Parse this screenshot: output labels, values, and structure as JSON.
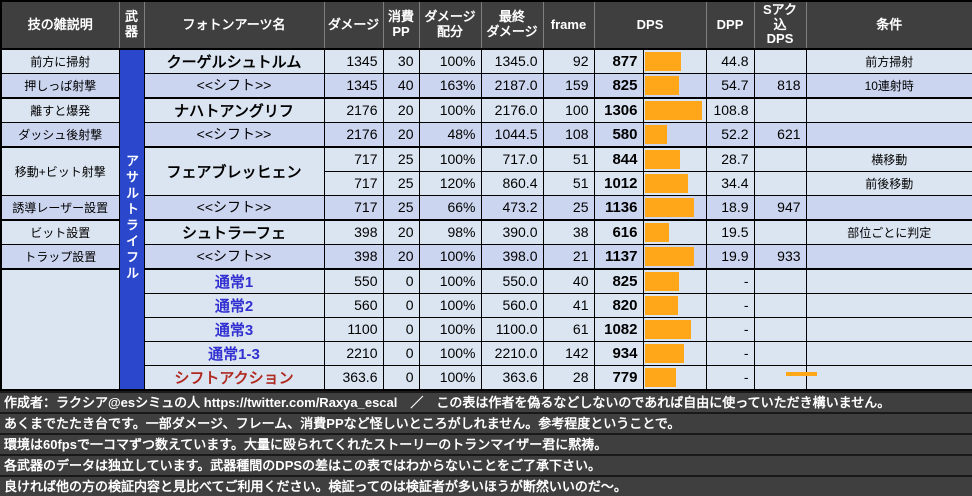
{
  "colors": {
    "header_bg": "#3f3f3f",
    "row_light": "#dbe5f1",
    "row_dark": "#ccd5ef",
    "weapon_band_blue": "#2b48cd",
    "dps_bar_orange": "#ffa718",
    "normal_attack_text": "#3230d0",
    "shift_action_text": "#b02a22"
  },
  "table": {
    "headers": {
      "desc": "技の雑説明",
      "weapon": "武\n器",
      "pa": "フォトンアーツ名",
      "damage": "ダメージ",
      "pp": "消費\nPP",
      "ratio": "ダメージ\n配分",
      "final": "最終\nダメージ",
      "frame": "frame",
      "dps": "DPS",
      "dpp": "DPP",
      "sdps": "Sアク込\nDPS",
      "cond": "条件"
    },
    "weapon_label": "アサルトライフル",
    "dps_bar_scale": {
      "min": 580,
      "max": 1306,
      "min_pct": 38,
      "max_pct": 97
    },
    "rows": [
      {
        "desc": "前方に掃射",
        "descSpan": 1,
        "pa": "クーゲルシュトルム",
        "paSpan": 1,
        "paStyle": "pa",
        "damage": "1345",
        "pp": "30",
        "ratio": "100%",
        "final": "1345.0",
        "frame": "92",
        "dps": 877,
        "dpp": "44.8",
        "sdps": "",
        "cond": "前方掃射",
        "tone": "light",
        "group": false
      },
      {
        "desc": "押しっぱ射撃",
        "descSpan": 1,
        "pa": "<<シフト>>",
        "paSpan": 1,
        "paStyle": "shift",
        "damage": "1345",
        "pp": "40",
        "ratio": "163%",
        "final": "2187.0",
        "frame": "159",
        "dps": 825,
        "dpp": "54.7",
        "sdps": "818",
        "cond": "10連射時",
        "tone": "dark",
        "group": false
      },
      {
        "desc": "離すと爆発",
        "descSpan": 1,
        "pa": "ナハトアングリフ",
        "paSpan": 1,
        "paStyle": "pa",
        "damage": "2176",
        "pp": "20",
        "ratio": "100%",
        "final": "2176.0",
        "frame": "100",
        "dps": 1306,
        "dpp": "108.8",
        "sdps": "",
        "cond": "",
        "tone": "light",
        "group": true
      },
      {
        "desc": "ダッシュ後射撃",
        "descSpan": 1,
        "pa": "<<シフト>>",
        "paSpan": 1,
        "paStyle": "shift",
        "damage": "2176",
        "pp": "20",
        "ratio": "48%",
        "final": "1044.5",
        "frame": "108",
        "dps": 580,
        "dpp": "52.2",
        "sdps": "621",
        "cond": "",
        "tone": "dark",
        "group": false
      },
      {
        "desc": "移動+ビット射撃",
        "descSpan": 2,
        "pa": "フェアブレッヒェン",
        "paSpan": 2,
        "paStyle": "pa",
        "damage": "717",
        "pp": "25",
        "ratio": "100%",
        "final": "717.0",
        "frame": "51",
        "dps": 844,
        "dpp": "28.7",
        "sdps": "",
        "cond": "横移動",
        "tone": "light",
        "group": true
      },
      {
        "damage": "717",
        "pp": "25",
        "ratio": "120%",
        "final": "860.4",
        "frame": "51",
        "dps": 1012,
        "dpp": "34.4",
        "sdps": "",
        "cond": "前後移動",
        "tone": "light",
        "group": false
      },
      {
        "desc": "誘導レーザー設置",
        "descSpan": 1,
        "pa": "<<シフト>>",
        "paSpan": 1,
        "paStyle": "shift",
        "damage": "717",
        "pp": "25",
        "ratio": "66%",
        "final": "473.2",
        "frame": "25",
        "dps": 1136,
        "dpp": "18.9",
        "sdps": "947",
        "cond": "",
        "tone": "dark",
        "group": false
      },
      {
        "desc": "ビット設置",
        "descSpan": 1,
        "pa": "シュトラーフェ",
        "paSpan": 1,
        "paStyle": "pa",
        "damage": "398",
        "pp": "20",
        "ratio": "98%",
        "final": "390.0",
        "frame": "38",
        "dps": 616,
        "dpp": "19.5",
        "sdps": "",
        "cond": "部位ごとに判定",
        "tone": "light",
        "group": true
      },
      {
        "desc": "トラップ設置",
        "descSpan": 1,
        "pa": "<<シフト>>",
        "paSpan": 1,
        "paStyle": "shift",
        "damage": "398",
        "pp": "20",
        "ratio": "100%",
        "final": "398.0",
        "frame": "21",
        "dps": 1137,
        "dpp": "19.9",
        "sdps": "933",
        "cond": "",
        "tone": "dark",
        "group": false
      },
      {
        "desc": "",
        "descSpan": 5,
        "pa": "通常1",
        "paSpan": 1,
        "paStyle": "normal",
        "damage": "550",
        "pp": "0",
        "ratio": "100%",
        "final": "550.0",
        "frame": "40",
        "dps": 825,
        "dpp": "-",
        "sdps": "",
        "cond": "",
        "tone": "light",
        "group": true
      },
      {
        "pa": "通常2",
        "paSpan": 1,
        "paStyle": "normal",
        "damage": "560",
        "pp": "0",
        "ratio": "100%",
        "final": "560.0",
        "frame": "41",
        "dps": 820,
        "dpp": "-",
        "sdps": "",
        "cond": "",
        "tone": "light",
        "group": false
      },
      {
        "pa": "通常3",
        "paSpan": 1,
        "paStyle": "normal",
        "damage": "1100",
        "pp": "0",
        "ratio": "100%",
        "final": "1100.0",
        "frame": "61",
        "dps": 1082,
        "dpp": "-",
        "sdps": "",
        "cond": "",
        "tone": "light",
        "group": false
      },
      {
        "pa": "通常1-3",
        "paSpan": 1,
        "paStyle": "normal",
        "damage": "2210",
        "pp": "0",
        "ratio": "100%",
        "final": "2210.0",
        "frame": "142",
        "dps": 934,
        "dpp": "-",
        "sdps": "",
        "cond": "",
        "tone": "light",
        "group": false
      },
      {
        "pa": "シフトアクション",
        "paSpan": 1,
        "paStyle": "shiftaction",
        "damage": "363.6",
        "pp": "0",
        "ratio": "100%",
        "final": "363.6",
        "frame": "28",
        "dps": 779,
        "dpp": "-",
        "sdps": "",
        "cond": "",
        "tone": "light",
        "group": false
      }
    ]
  },
  "footer": {
    "lines": [
      "作成者：ラクシア@esシミュの人 https://twitter.com/Raxya_escal　／　この表は作者を偽るなどしないのであれば自由に使っていただき構いません。",
      "あくまでたたき台です。一部ダメージ、フレーム、消費PPなど怪しいところがしれません。参考程度ということで。",
      "環境は60fpsで一コマずつ数えています。大量に殴られてくれたストーリーのトランマイザー君に黙祷。",
      "各武器のデータは独立しています。武器種間のDPSの差はこの表ではわからないことをご了承下さい。",
      "良ければ他の方の検証内容と見比べてご利用ください。検証ってのは検証者が多いほうが断然いいのだ～。"
    ]
  }
}
